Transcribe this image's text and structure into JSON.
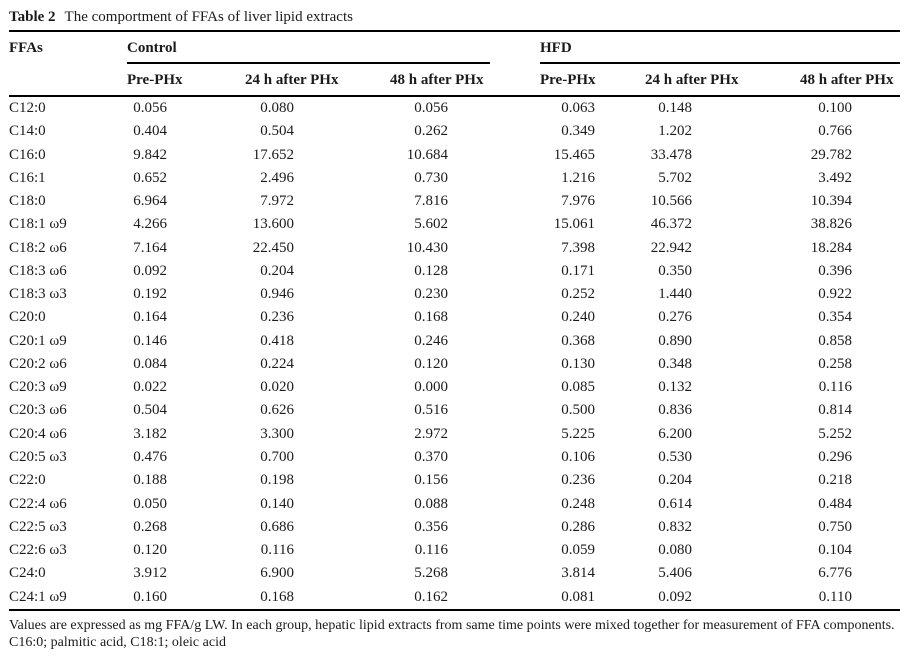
{
  "title": {
    "label": "Table 2",
    "text": "The comportment of FFAs of liver lipid extracts"
  },
  "table": {
    "col1_header": "FFAs",
    "groups": [
      {
        "label": "Control",
        "subheaders": [
          "Pre-PHx",
          "24 h after PHx",
          "48 h after PHx"
        ]
      },
      {
        "label": "HFD",
        "subheaders": [
          "Pre-PHx",
          "24 h after PHx",
          "48 h after PHx"
        ]
      }
    ],
    "rows": [
      {
        "ffa": "C12:0",
        "control": [
          "0.056",
          "0.080",
          "0.056"
        ],
        "hfd": [
          "0.063",
          "0.148",
          "0.100"
        ]
      },
      {
        "ffa": "C14:0",
        "control": [
          "0.404",
          "0.504",
          "0.262"
        ],
        "hfd": [
          "0.349",
          "1.202",
          "0.766"
        ]
      },
      {
        "ffa": "C16:0",
        "control": [
          "9.842",
          "17.652",
          "10.684"
        ],
        "hfd": [
          "15.465",
          "33.478",
          "29.782"
        ]
      },
      {
        "ffa": "C16:1",
        "control": [
          "0.652",
          "2.496",
          "0.730"
        ],
        "hfd": [
          "1.216",
          "5.702",
          "3.492"
        ]
      },
      {
        "ffa": "C18:0",
        "control": [
          "6.964",
          "7.972",
          "7.816"
        ],
        "hfd": [
          "7.976",
          "10.566",
          "10.394"
        ]
      },
      {
        "ffa": "C18:1 ω9",
        "control": [
          "4.266",
          "13.600",
          "5.602"
        ],
        "hfd": [
          "15.061",
          "46.372",
          "38.826"
        ]
      },
      {
        "ffa": "C18:2 ω6",
        "control": [
          "7.164",
          "22.450",
          "10.430"
        ],
        "hfd": [
          "7.398",
          "22.942",
          "18.284"
        ]
      },
      {
        "ffa": "C18:3 ω6",
        "control": [
          "0.092",
          "0.204",
          "0.128"
        ],
        "hfd": [
          "0.171",
          "0.350",
          "0.396"
        ]
      },
      {
        "ffa": "C18:3 ω3",
        "control": [
          "0.192",
          "0.946",
          "0.230"
        ],
        "hfd": [
          "0.252",
          "1.440",
          "0.922"
        ]
      },
      {
        "ffa": "C20:0",
        "control": [
          "0.164",
          "0.236",
          "0.168"
        ],
        "hfd": [
          "0.240",
          "0.276",
          "0.354"
        ]
      },
      {
        "ffa": "C20:1 ω9",
        "control": [
          "0.146",
          "0.418",
          "0.246"
        ],
        "hfd": [
          "0.368",
          "0.890",
          "0.858"
        ]
      },
      {
        "ffa": "C20:2 ω6",
        "control": [
          "0.084",
          "0.224",
          "0.120"
        ],
        "hfd": [
          "0.130",
          "0.348",
          "0.258"
        ]
      },
      {
        "ffa": "C20:3 ω9",
        "control": [
          "0.022",
          "0.020",
          "0.000"
        ],
        "hfd": [
          "0.085",
          "0.132",
          "0.116"
        ]
      },
      {
        "ffa": "C20:3 ω6",
        "control": [
          "0.504",
          "0.626",
          "0.516"
        ],
        "hfd": [
          "0.500",
          "0.836",
          "0.814"
        ]
      },
      {
        "ffa": "C20:4 ω6",
        "control": [
          "3.182",
          "3.300",
          "2.972"
        ],
        "hfd": [
          "5.225",
          "6.200",
          "5.252"
        ]
      },
      {
        "ffa": "C20:5 ω3",
        "control": [
          "0.476",
          "0.700",
          "0.370"
        ],
        "hfd": [
          "0.106",
          "0.530",
          "0.296"
        ]
      },
      {
        "ffa": "C22:0",
        "control": [
          "0.188",
          "0.198",
          "0.156"
        ],
        "hfd": [
          "0.236",
          "0.204",
          "0.218"
        ]
      },
      {
        "ffa": "C22:4 ω6",
        "control": [
          "0.050",
          "0.140",
          "0.088"
        ],
        "hfd": [
          "0.248",
          "0.614",
          "0.484"
        ]
      },
      {
        "ffa": "C22:5 ω3",
        "control": [
          "0.268",
          "0.686",
          "0.356"
        ],
        "hfd": [
          "0.286",
          "0.832",
          "0.750"
        ]
      },
      {
        "ffa": "C22:6 ω3",
        "control": [
          "0.120",
          "0.116",
          "0.116"
        ],
        "hfd": [
          "0.059",
          "0.080",
          "0.104"
        ]
      },
      {
        "ffa": "C24:0",
        "control": [
          "3.912",
          "6.900",
          "5.268"
        ],
        "hfd": [
          "3.814",
          "5.406",
          "6.776"
        ]
      },
      {
        "ffa": "C24:1 ω9",
        "control": [
          "0.160",
          "0.168",
          "0.162"
        ],
        "hfd": [
          "0.081",
          "0.092",
          "0.110"
        ]
      }
    ]
  },
  "footnote": "Values are expressed as mg FFA/g LW. In each group, hepatic lipid extracts from same time points were mixed together for measurement of FFA components. C16:0; palmitic acid, C18:1; oleic acid"
}
